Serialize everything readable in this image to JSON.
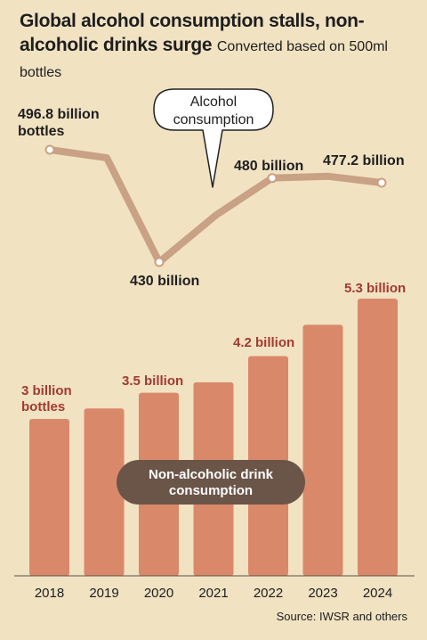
{
  "title": "Global alcohol consumption stalls, non-alcoholic drinks surge",
  "subtitle": "Converted based on 500ml bottles",
  "source": "Source: IWSR and others",
  "colors": {
    "background": "#f1e2c2",
    "bar": "#d9896a",
    "line": "#c9a184",
    "bar_label": "#a33a30",
    "pill": "#6b5548"
  },
  "chart_data": {
    "type": "bar+line",
    "categories": [
      "2018",
      "2019",
      "2020",
      "2021",
      "2022",
      "2023",
      "2024"
    ],
    "series": [
      {
        "name": "Non-alcoholic drink consumption",
        "type": "bar",
        "unit": "billion bottles",
        "values": [
          3.0,
          3.2,
          3.5,
          3.7,
          4.2,
          4.8,
          5.3
        ],
        "labels": [
          "3 billion bottles",
          "",
          "3.5 billion",
          "",
          "4.2 billion",
          "",
          "5.3 billion"
        ]
      },
      {
        "name": "Alcohol consumption",
        "type": "line",
        "unit": "billion bottles",
        "values": [
          496.8,
          492,
          430,
          458,
          480,
          481,
          477.2
        ],
        "labels": [
          "496.8 billion bottles",
          "",
          "430 billion",
          "",
          "480 billion",
          "",
          "477.2 billion"
        ],
        "marked_points": [
          0,
          2,
          4,
          6
        ]
      }
    ],
    "bar_ylim": [
      0,
      5.7
    ],
    "line_ylim": [
      420,
      500
    ],
    "grid": false,
    "legend": "inline callouts"
  }
}
